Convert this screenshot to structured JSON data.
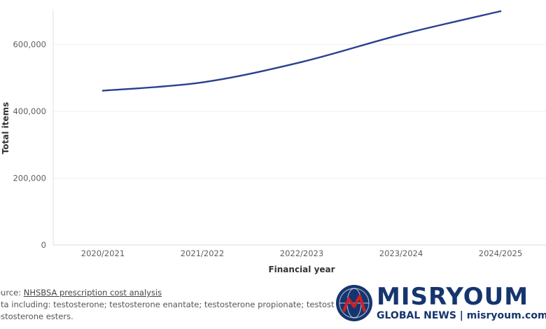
{
  "chart_data": {
    "type": "line",
    "categories": [
      "2020/2021",
      "2021/2022",
      "2022/2023",
      "2023/2024",
      "2024/2025"
    ],
    "series": [
      {
        "values": [
          462000,
          487000,
          548000,
          630000,
          700000
        ]
      }
    ],
    "xlabel": "Financial year",
    "ylabel": "Total items",
    "yticks": [
      "0",
      "200,000",
      "400,000",
      "600,000"
    ],
    "ytick_values": [
      0,
      200000,
      400000,
      600000
    ],
    "ylim": [
      0,
      700000
    ],
    "grid": true,
    "legend": "none",
    "line_color": "#2a3f8f"
  },
  "source": {
    "prefix": "ource: ",
    "link_text": "NHSBSA prescription cost analysis",
    "line2": "ata including: testosterone; testosterone enantate; testosterone propionate; testosterone",
    "line3": "estosterone esters."
  },
  "logo": {
    "title": "MISRYOUM",
    "subtitle": "GLOBAL NEWS | misryoum.com",
    "color": "#16356e",
    "accent": "#d21f26"
  }
}
